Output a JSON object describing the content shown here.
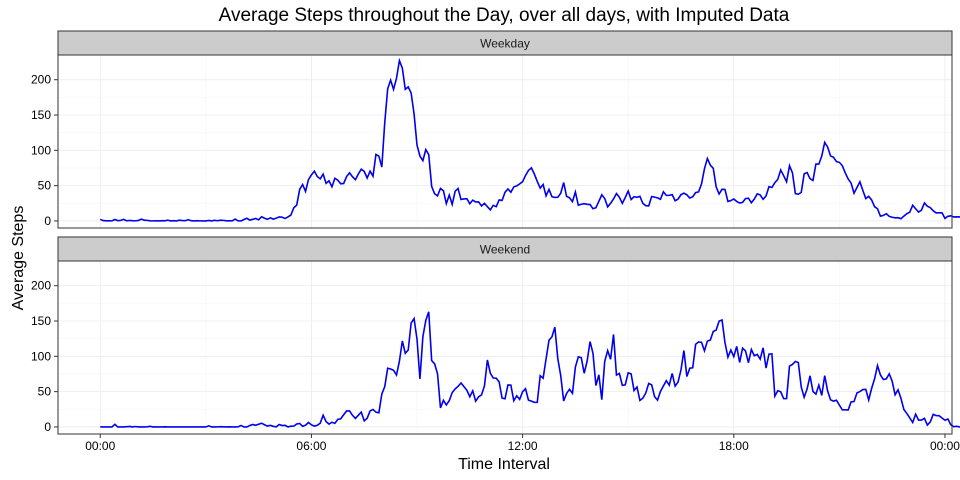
{
  "chart_data": {
    "type": "line",
    "title": "Average Steps throughout the Day, over all days, with Imputed Data",
    "xlabel": "Time Interval",
    "ylabel": "Average Steps",
    "x_ticks": [
      "00:00",
      "06:00",
      "12:00",
      "18:00",
      "00:00"
    ],
    "x_tick_hours": [
      0,
      6,
      12,
      18,
      24
    ],
    "y_ticks": [
      0,
      50,
      100,
      150,
      200
    ],
    "ylim": [
      -10,
      235
    ],
    "xlim_hours": [
      -1.2,
      24.2
    ],
    "grid": true,
    "line_color": "#0000ee",
    "strip_color": "#cccccc",
    "x_hours_step": 0.0833333,
    "panels": [
      {
        "label": "Weekday",
        "values": [
          2.3,
          0.5,
          0.2,
          0.2,
          0.1,
          2.0,
          0.4,
          0.8,
          2.2,
          0.2,
          0.7,
          0.3,
          0.1,
          0.7,
          2.6,
          1.0,
          0.8,
          0.2,
          0.1,
          0.2,
          0.0,
          0.4,
          0.2,
          1.1,
          0.0,
          0.3,
          0.0,
          1.0,
          0.5,
          0.3,
          1.8,
          0.3,
          0.0,
          0.3,
          0.1,
          0.0,
          0.0,
          0.7,
          0.0,
          0.9,
          0.3,
          1.0,
          0.8,
          0.2,
          0.2,
          0.2,
          2.7,
          0.1,
          0.0,
          2.0,
          3.8,
          1.2,
          2.3,
          3.5,
          1.6,
          6.0,
          3.8,
          2.3,
          4.4,
          2.6,
          3.9,
          5.7,
          5.4,
          3.4,
          5.6,
          8.3,
          18.7,
          22.5,
          44.8,
          51.6,
          41.8,
          58.6,
          65.2,
          70.5,
          62.9,
          59.6,
          66.3,
          53.2,
          56.8,
          48.3,
          60.5,
          57.7,
          52.7,
          53.1,
          62.9,
          68.1,
          62.6,
          58.4,
          66.5,
          73.3,
          70.2,
          60.8,
          70.5,
          63.4,
          94.2,
          91.8,
          76.3,
          139.2,
          187.2,
          199.4,
          186.3,
          202.0,
          227.1,
          216.4,
          186.4,
          189.8,
          181.1,
          151.6,
          107.3,
          91.8,
          85.4,
          101.0,
          93.9,
          48.9,
          38.5,
          35.5,
          46.1,
          42.8,
          24.6,
          36.6,
          23.4,
          42.0,
          46.0,
          30.4,
          31.1,
          31.5,
          24.3,
          29.4,
          26.9,
          26.9,
          21.3,
          24.9,
          20.2,
          15.8,
          22.1,
          20.2,
          29.8,
          29.0,
          40.5,
          45.3,
          40.6,
          48.2,
          49.6,
          52.5,
          55.6,
          64.4,
          71.5,
          75.3,
          66.5,
          55.9,
          46.5,
          51.6,
          35.5,
          44.6,
          34.3,
          33.3,
          33.5,
          39.2,
          54.4,
          34.8,
          32.8,
          27.3,
          41.0,
          22.2,
          23.6,
          24.4,
          23.6,
          23.2,
          17.3,
          18.7,
          27.8,
          37.1,
          31.8,
          19.9,
          25.1,
          31.1,
          38.7,
          33.5,
          24.9,
          33.2,
          42.4,
          30.3,
          34.3,
          33.5,
          34.8,
          24.8,
          21.6,
          21.3,
          34.6,
          33.7,
          32.7,
          30.7,
          41.3,
          36.2,
          36.2,
          37.3,
          28.6,
          30.9,
          37.2,
          39.4,
          37.0,
          32.5,
          34.3,
          40.1,
          41.2,
          52.4,
          73.8,
          88.5,
          78.9,
          74.6,
          48.1,
          38.1,
          44.9,
          44.5,
          27.6,
          28.8,
          31.1,
          27.6,
          25.3,
          26.3,
          31.6,
          32.2,
          25.7,
          31.0,
          38.3,
          36.9,
          30.6,
          35.3,
          48.6,
          47.4,
          54.1,
          58.9,
          72.2,
          64.1,
          55.4,
          78.2,
          68.2,
          38.6,
          37.9,
          40.4,
          66.7,
          68.6,
          59.8,
          57.3,
          80.6,
          80.5,
          92.0,
          111.3,
          104.6,
          92.0,
          90.1,
          84.1,
          82.9,
          78.3,
          68.1,
          59.5,
          53.6,
          39.3,
          47.3,
          55.4,
          43.3,
          31.7,
          34.8,
          29.7,
          20.2,
          17.3,
          6.8,
          7.8,
          10.2,
          6.5,
          5.2,
          4.4,
          4.6,
          3.2,
          6.9,
          10.3,
          12.4,
          22.2,
          17.3,
          12.5,
          15.4,
          25.4,
          20.9,
          18.8,
          14.4,
          11.4,
          11.5,
          11.5,
          3.6,
          6.6,
          7.3,
          5.6,
          5.8,
          5.6,
          7.8,
          9.5,
          8.7,
          1.5,
          1.3,
          1.8,
          3.8,
          1.9,
          2.2,
          0.9,
          2.8,
          1.0,
          1.8,
          2.2,
          3.7,
          1.4,
          1.9,
          2.2,
          1.2,
          1.0,
          0.9,
          1.9,
          3.0,
          1.3,
          1.4,
          1.8,
          1.2
        ]
      },
      {
        "label": "Weekend",
        "values": [
          0.2,
          0.0,
          0.0,
          0.0,
          0.0,
          3.7,
          0.0,
          0.0,
          0.0,
          0.3,
          0.7,
          0.0,
          0.6,
          0.0,
          0.0,
          0.0,
          0.2,
          0.8,
          0.0,
          0.0,
          0.0,
          0.0,
          0.2,
          0.0,
          0.0,
          0.0,
          0.0,
          0.0,
          0.0,
          0.0,
          0.0,
          0.0,
          0.0,
          0.0,
          0.0,
          0.0,
          0.0,
          1.6,
          0.0,
          0.0,
          0.1,
          0.4,
          0.2,
          0.0,
          0.2,
          0.0,
          0.0,
          0.1,
          2.1,
          0.0,
          0.0,
          2.1,
          3.5,
          2.3,
          3.8,
          5.3,
          3.1,
          1.2,
          2.2,
          0.9,
          0.1,
          3.4,
          2.0,
          2.3,
          0.1,
          1.0,
          1.2,
          4.2,
          4.9,
          0.9,
          2.4,
          6.3,
          3.0,
          1.1,
          2.4,
          5.3,
          16.6,
          7.5,
          4.0,
          6.7,
          5.1,
          10.8,
          11.6,
          17.3,
          22.6,
          22.6,
          16.5,
          12.0,
          16.6,
          21.0,
          8.6,
          12.3,
          22.6,
          24.8,
          20.9,
          20.1,
          46.6,
          57.0,
          83.2,
          82.1,
          80.3,
          73.5,
          93.1,
          121.8,
          104.2,
          108.9,
          147.1,
          153.4,
          124.2,
          68.0,
          127.5,
          150.9,
          163.1,
          94.0,
          89.4,
          75.2,
          26.9,
          37.7,
          31.2,
          37.3,
          48.6,
          53.9,
          57.5,
          62.3,
          57.1,
          51.9,
          42.8,
          51.2,
          36.5,
          42.7,
          45.4,
          58.2,
          94.9,
          76.1,
          69.3,
          69.1,
          63.8,
          40.9,
          39.9,
          59.5,
          59.2,
          37.1,
          44.2,
          39.0,
          50.0,
          54.2,
          38.0,
          36.5,
          34.9,
          34.8,
          72.6,
          69.0,
          96.3,
          122.8,
          127.6,
          141.3,
          96.7,
          72.6,
          36.7,
          47.4,
          53.4,
          47.6,
          84.8,
          99.2,
          98.2,
          76.0,
          93.3,
          120.9,
          104.2,
          58.7,
          73.8,
          38.6,
          92.9,
          108.1,
          95.8,
          131.0,
          73.5,
          75.8,
          58.9,
          59.7,
          76.7,
          75.2,
          51.6,
          56.6,
          37.5,
          40.8,
          48.1,
          61.6,
          59.6,
          43.0,
          38.0,
          50.2,
          58.0,
          65.5,
          59.2,
          75.8,
          57.8,
          63.6,
          80.8,
          108.2,
          71.4,
          83.1,
          83.7,
          117.1,
          120.3,
          119.8,
          107.8,
          121.5,
          122.9,
          135.2,
          137.2,
          149.8,
          151.4,
          119.4,
          98.9,
          108.9,
          99.6,
          114.1,
          91.3,
          111.6,
          107.7,
          91.0,
          109.7,
          100.8,
          102.7,
          96.1,
          112.0,
          83.4,
          103.2,
          103.5,
          43.7,
          51.3,
          49.8,
          40.1,
          40.2,
          86.3,
          88.5,
          92.8,
          91.2,
          56.6,
          42.1,
          53.8,
          72.4,
          50.2,
          46.5,
          59.3,
          44.7,
          72.7,
          50.9,
          38.4,
          36.6,
          37.8,
          30.9,
          24.3,
          24.3,
          23.9,
          35.5,
          36.0,
          48.2,
          50.1,
          52.9,
          53.3,
          38.2,
          54.6,
          68.0,
          86.8,
          73.6,
          67.2,
          68.0,
          75.2,
          64.7,
          45.5,
          52.6,
          40.4,
          24.6,
          19.1,
          12.8,
          6.4,
          18.1,
          9.7,
          9.7,
          12.2,
          2.7,
          7.1,
          17.8,
          16.0,
          15.9,
          12.6,
          9.5,
          11.2,
          3.0,
          0.4,
          0.9,
          0.0,
          0.3,
          0.0,
          0.3,
          0.0,
          0.6,
          1.1,
          0.1,
          0.8,
          0.0,
          0.4,
          0.0,
          6.2,
          12.4,
          1.9,
          0.0,
          0.1,
          0.0,
          0.2,
          0.2,
          0.2,
          0.0,
          0.3,
          0.0,
          4.6,
          10.4,
          6.8,
          1.7,
          0.3,
          0.0
        ]
      }
    ]
  }
}
